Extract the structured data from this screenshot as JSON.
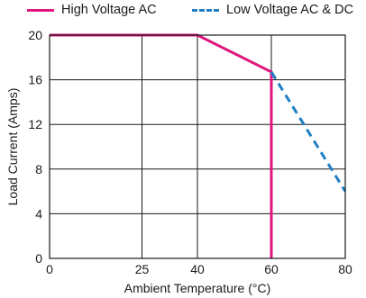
{
  "chart_data": {
    "type": "line",
    "title": "",
    "xlabel": "Ambient Temperature (°C)",
    "ylabel": "Load Current (Amps)",
    "xlim": [
      0,
      80
    ],
    "ylim": [
      0,
      20
    ],
    "xticks": [
      "0",
      "25",
      "40",
      "60",
      "80"
    ],
    "yticks": [
      "0",
      "4",
      "8",
      "12",
      "16",
      "20"
    ],
    "grid": true,
    "legend_position": "top",
    "series": [
      {
        "name": "High Voltage AC",
        "color": "#e0157f",
        "style": "solid",
        "points": [
          [
            0,
            20
          ],
          [
            40,
            20
          ],
          [
            60,
            16.7
          ],
          [
            60,
            0
          ]
        ]
      },
      {
        "name": "Low Voltage AC & DC",
        "color": "#1f7fc4",
        "style": "dashed",
        "points": [
          [
            60,
            16.7
          ],
          [
            80,
            6
          ]
        ]
      }
    ]
  }
}
